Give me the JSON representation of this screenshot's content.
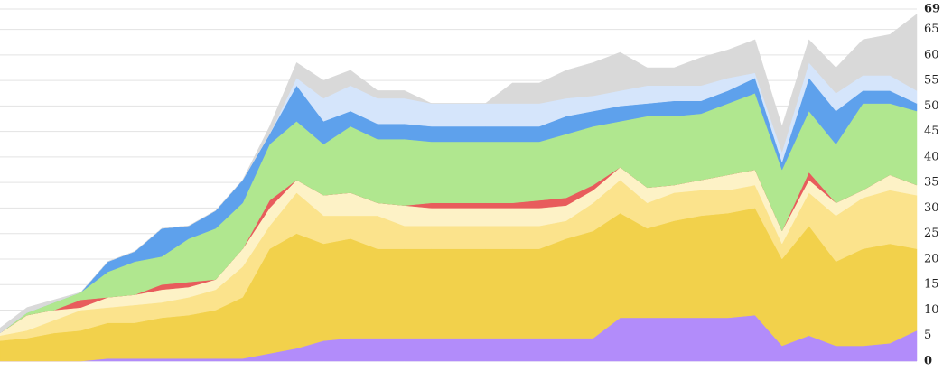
{
  "chart_data": {
    "type": "stacked-area",
    "ylim": [
      0,
      69
    ],
    "yticks": [
      0,
      5,
      10,
      15,
      20,
      25,
      30,
      35,
      40,
      45,
      50,
      55,
      60,
      65,
      69
    ],
    "grid": true,
    "series": [
      {
        "color": "#b28cfa",
        "values": [
          0,
          0,
          0,
          0,
          0.5,
          0.5,
          0.5,
          0.5,
          0.5,
          0.5,
          1.5,
          2.5,
          4,
          4.5,
          4.5,
          4.5,
          4.5,
          4.5,
          4.5,
          4.5,
          4.5,
          4.5,
          4.5,
          8.5,
          8.5,
          8.5,
          8.5,
          8.5,
          9,
          3,
          5,
          3,
          3,
          3.5,
          6
        ]
      },
      {
        "color": "#f2d14b",
        "values": [
          4,
          4.5,
          5.5,
          6,
          7,
          7,
          8,
          8.5,
          9.5,
          12,
          20.5,
          22.5,
          19,
          19.5,
          17.5,
          17.5,
          17.5,
          17.5,
          17.5,
          17.5,
          17.5,
          19.5,
          21,
          20.5,
          17.5,
          19,
          20,
          20.5,
          21,
          17,
          21.5,
          16.5,
          19,
          19.5,
          16
        ]
      },
      {
        "color": "#fbe38c",
        "values": [
          1,
          1.5,
          2.5,
          4,
          3,
          3.5,
          3,
          3.5,
          4,
          6,
          4.5,
          8,
          5.5,
          4.5,
          6.5,
          4.5,
          4.5,
          4.5,
          4.5,
          4.5,
          4.5,
          3.5,
          5.5,
          6.5,
          5,
          5.5,
          5,
          4.5,
          4.5,
          3,
          6.5,
          9,
          10,
          10.5,
          10.5
        ]
      },
      {
        "color": "#fdf2c6",
        "values": [
          0.5,
          3,
          2,
          0.5,
          2,
          2,
          2.5,
          2,
          2,
          3.5,
          3.5,
          2.5,
          4,
          4.5,
          2.5,
          4,
          3.5,
          3.5,
          3.5,
          3.5,
          3.5,
          3,
          2.5,
          2.5,
          3,
          1.5,
          2,
          3,
          3,
          2.5,
          2.5,
          2.5,
          1.5,
          3,
          2
        ]
      },
      {
        "color": "#e85c5c",
        "values": [
          0,
          0,
          0,
          1.5,
          0,
          0,
          1,
          1,
          0,
          0,
          1.5,
          0,
          0,
          0,
          0,
          0,
          1,
          1,
          1,
          1,
          1.5,
          1.5,
          1,
          0,
          0,
          0,
          0,
          0,
          0,
          0,
          1.5,
          0,
          0,
          0,
          0
        ]
      },
      {
        "color": "#b0e78f",
        "values": [
          0,
          0.5,
          1.5,
          1.5,
          5,
          6.5,
          5.5,
          8.5,
          10,
          9,
          11,
          11.5,
          10,
          13,
          12.5,
          13,
          12,
          12,
          12,
          12,
          11.5,
          12.5,
          11.5,
          9,
          14,
          13.5,
          13,
          14,
          15,
          12,
          12,
          11.5,
          17,
          14,
          14.5
        ]
      },
      {
        "color": "#5ea1ec",
        "values": [
          0,
          0,
          0,
          0,
          2,
          2,
          5.5,
          2.5,
          3.5,
          4.5,
          2,
          7,
          4.5,
          3,
          3,
          3,
          3,
          3,
          3,
          3,
          3,
          3.5,
          3,
          3,
          2.5,
          3,
          2.5,
          2.5,
          3,
          1.5,
          6.5,
          6.5,
          2.5,
          2.5,
          1.5
        ]
      },
      {
        "color": "#d5e5fb",
        "values": [
          0,
          0,
          0,
          0,
          0,
          0,
          0,
          0,
          0,
          0,
          0,
          1.5,
          4.5,
          5,
          5,
          5,
          4.5,
          4.5,
          4.5,
          4.5,
          4.5,
          3.5,
          3,
          3,
          3.5,
          3,
          3,
          2.5,
          1,
          2,
          3,
          3.5,
          3,
          3,
          2.5
        ]
      },
      {
        "color": "#d9d9d9",
        "values": [
          1,
          1,
          0.5,
          0,
          0,
          0,
          0,
          0,
          0,
          0,
          1.5,
          3,
          3.5,
          3,
          1.5,
          1.5,
          0,
          0,
          0,
          4,
          4,
          5.5,
          6.5,
          7.5,
          3.5,
          3.5,
          5.5,
          5.5,
          6.5,
          5,
          4.5,
          5,
          7,
          8,
          15
        ]
      }
    ]
  }
}
